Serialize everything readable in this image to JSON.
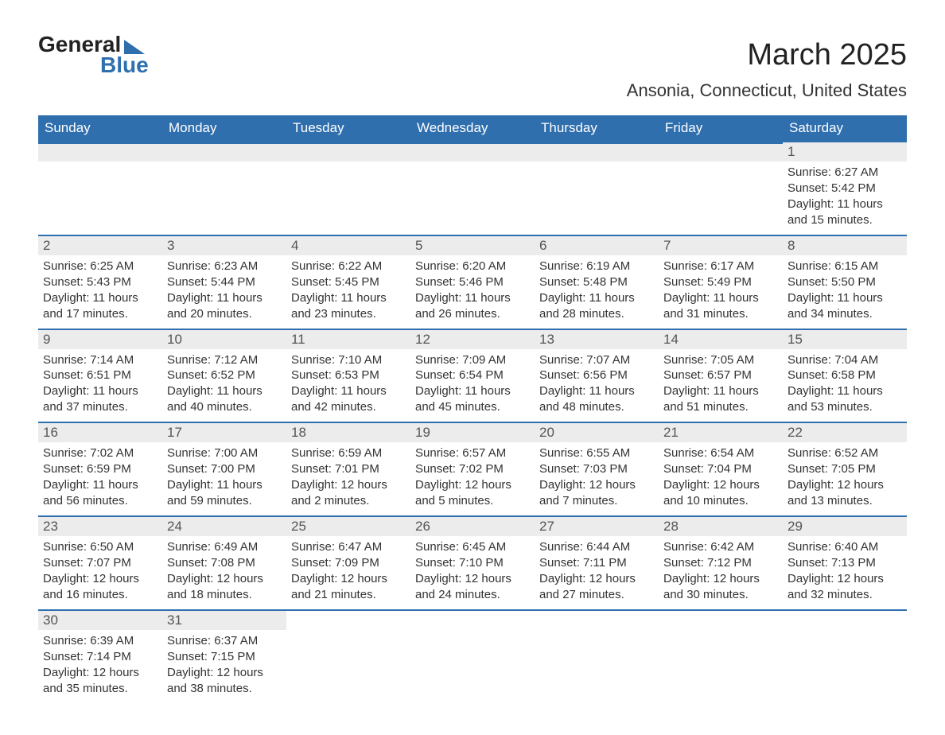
{
  "brand": {
    "word1": "General",
    "word2": "Blue",
    "accent": "#2f6fae"
  },
  "title": "March 2025",
  "location": "Ansonia, Connecticut, United States",
  "day_headers": [
    "Sunday",
    "Monday",
    "Tuesday",
    "Wednesday",
    "Thursday",
    "Friday",
    "Saturday"
  ],
  "style": {
    "header_bg": "#2f6fae",
    "header_fg": "#ffffff",
    "daynum_bg": "#ececec",
    "cell_border": "#2f6fae",
    "text_color": "#333333",
    "title_fontsize": 38,
    "location_fontsize": 22,
    "dayhead_fontsize": 17,
    "body_fontsize": 15
  },
  "weeks": [
    [
      {
        "n": "",
        "sunrise": "",
        "sunset": "",
        "daylight": ""
      },
      {
        "n": "",
        "sunrise": "",
        "sunset": "",
        "daylight": ""
      },
      {
        "n": "",
        "sunrise": "",
        "sunset": "",
        "daylight": ""
      },
      {
        "n": "",
        "sunrise": "",
        "sunset": "",
        "daylight": ""
      },
      {
        "n": "",
        "sunrise": "",
        "sunset": "",
        "daylight": ""
      },
      {
        "n": "",
        "sunrise": "",
        "sunset": "",
        "daylight": ""
      },
      {
        "n": "1",
        "sunrise": "Sunrise: 6:27 AM",
        "sunset": "Sunset: 5:42 PM",
        "daylight": "Daylight: 11 hours and 15 minutes."
      }
    ],
    [
      {
        "n": "2",
        "sunrise": "Sunrise: 6:25 AM",
        "sunset": "Sunset: 5:43 PM",
        "daylight": "Daylight: 11 hours and 17 minutes."
      },
      {
        "n": "3",
        "sunrise": "Sunrise: 6:23 AM",
        "sunset": "Sunset: 5:44 PM",
        "daylight": "Daylight: 11 hours and 20 minutes."
      },
      {
        "n": "4",
        "sunrise": "Sunrise: 6:22 AM",
        "sunset": "Sunset: 5:45 PM",
        "daylight": "Daylight: 11 hours and 23 minutes."
      },
      {
        "n": "5",
        "sunrise": "Sunrise: 6:20 AM",
        "sunset": "Sunset: 5:46 PM",
        "daylight": "Daylight: 11 hours and 26 minutes."
      },
      {
        "n": "6",
        "sunrise": "Sunrise: 6:19 AM",
        "sunset": "Sunset: 5:48 PM",
        "daylight": "Daylight: 11 hours and 28 minutes."
      },
      {
        "n": "7",
        "sunrise": "Sunrise: 6:17 AM",
        "sunset": "Sunset: 5:49 PM",
        "daylight": "Daylight: 11 hours and 31 minutes."
      },
      {
        "n": "8",
        "sunrise": "Sunrise: 6:15 AM",
        "sunset": "Sunset: 5:50 PM",
        "daylight": "Daylight: 11 hours and 34 minutes."
      }
    ],
    [
      {
        "n": "9",
        "sunrise": "Sunrise: 7:14 AM",
        "sunset": "Sunset: 6:51 PM",
        "daylight": "Daylight: 11 hours and 37 minutes."
      },
      {
        "n": "10",
        "sunrise": "Sunrise: 7:12 AM",
        "sunset": "Sunset: 6:52 PM",
        "daylight": "Daylight: 11 hours and 40 minutes."
      },
      {
        "n": "11",
        "sunrise": "Sunrise: 7:10 AM",
        "sunset": "Sunset: 6:53 PM",
        "daylight": "Daylight: 11 hours and 42 minutes."
      },
      {
        "n": "12",
        "sunrise": "Sunrise: 7:09 AM",
        "sunset": "Sunset: 6:54 PM",
        "daylight": "Daylight: 11 hours and 45 minutes."
      },
      {
        "n": "13",
        "sunrise": "Sunrise: 7:07 AM",
        "sunset": "Sunset: 6:56 PM",
        "daylight": "Daylight: 11 hours and 48 minutes."
      },
      {
        "n": "14",
        "sunrise": "Sunrise: 7:05 AM",
        "sunset": "Sunset: 6:57 PM",
        "daylight": "Daylight: 11 hours and 51 minutes."
      },
      {
        "n": "15",
        "sunrise": "Sunrise: 7:04 AM",
        "sunset": "Sunset: 6:58 PM",
        "daylight": "Daylight: 11 hours and 53 minutes."
      }
    ],
    [
      {
        "n": "16",
        "sunrise": "Sunrise: 7:02 AM",
        "sunset": "Sunset: 6:59 PM",
        "daylight": "Daylight: 11 hours and 56 minutes."
      },
      {
        "n": "17",
        "sunrise": "Sunrise: 7:00 AM",
        "sunset": "Sunset: 7:00 PM",
        "daylight": "Daylight: 11 hours and 59 minutes."
      },
      {
        "n": "18",
        "sunrise": "Sunrise: 6:59 AM",
        "sunset": "Sunset: 7:01 PM",
        "daylight": "Daylight: 12 hours and 2 minutes."
      },
      {
        "n": "19",
        "sunrise": "Sunrise: 6:57 AM",
        "sunset": "Sunset: 7:02 PM",
        "daylight": "Daylight: 12 hours and 5 minutes."
      },
      {
        "n": "20",
        "sunrise": "Sunrise: 6:55 AM",
        "sunset": "Sunset: 7:03 PM",
        "daylight": "Daylight: 12 hours and 7 minutes."
      },
      {
        "n": "21",
        "sunrise": "Sunrise: 6:54 AM",
        "sunset": "Sunset: 7:04 PM",
        "daylight": "Daylight: 12 hours and 10 minutes."
      },
      {
        "n": "22",
        "sunrise": "Sunrise: 6:52 AM",
        "sunset": "Sunset: 7:05 PM",
        "daylight": "Daylight: 12 hours and 13 minutes."
      }
    ],
    [
      {
        "n": "23",
        "sunrise": "Sunrise: 6:50 AM",
        "sunset": "Sunset: 7:07 PM",
        "daylight": "Daylight: 12 hours and 16 minutes."
      },
      {
        "n": "24",
        "sunrise": "Sunrise: 6:49 AM",
        "sunset": "Sunset: 7:08 PM",
        "daylight": "Daylight: 12 hours and 18 minutes."
      },
      {
        "n": "25",
        "sunrise": "Sunrise: 6:47 AM",
        "sunset": "Sunset: 7:09 PM",
        "daylight": "Daylight: 12 hours and 21 minutes."
      },
      {
        "n": "26",
        "sunrise": "Sunrise: 6:45 AM",
        "sunset": "Sunset: 7:10 PM",
        "daylight": "Daylight: 12 hours and 24 minutes."
      },
      {
        "n": "27",
        "sunrise": "Sunrise: 6:44 AM",
        "sunset": "Sunset: 7:11 PM",
        "daylight": "Daylight: 12 hours and 27 minutes."
      },
      {
        "n": "28",
        "sunrise": "Sunrise: 6:42 AM",
        "sunset": "Sunset: 7:12 PM",
        "daylight": "Daylight: 12 hours and 30 minutes."
      },
      {
        "n": "29",
        "sunrise": "Sunrise: 6:40 AM",
        "sunset": "Sunset: 7:13 PM",
        "daylight": "Daylight: 12 hours and 32 minutes."
      }
    ],
    [
      {
        "n": "30",
        "sunrise": "Sunrise: 6:39 AM",
        "sunset": "Sunset: 7:14 PM",
        "daylight": "Daylight: 12 hours and 35 minutes."
      },
      {
        "n": "31",
        "sunrise": "Sunrise: 6:37 AM",
        "sunset": "Sunset: 7:15 PM",
        "daylight": "Daylight: 12 hours and 38 minutes."
      },
      {
        "n": "",
        "sunrise": "",
        "sunset": "",
        "daylight": ""
      },
      {
        "n": "",
        "sunrise": "",
        "sunset": "",
        "daylight": ""
      },
      {
        "n": "",
        "sunrise": "",
        "sunset": "",
        "daylight": ""
      },
      {
        "n": "",
        "sunrise": "",
        "sunset": "",
        "daylight": ""
      },
      {
        "n": "",
        "sunrise": "",
        "sunset": "",
        "daylight": ""
      }
    ]
  ]
}
